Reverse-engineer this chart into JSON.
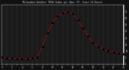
{
  "hours": [
    0,
    1,
    2,
    3,
    4,
    5,
    6,
    7,
    8,
    9,
    10,
    11,
    12,
    13,
    14,
    15,
    16,
    17,
    18,
    19,
    20,
    21,
    22,
    23,
    24
  ],
  "values": [
    5,
    4,
    4,
    3,
    3,
    3,
    4,
    5,
    22,
    42,
    58,
    68,
    73,
    75,
    72,
    62,
    50,
    38,
    28,
    22,
    18,
    15,
    13,
    12,
    11
  ],
  "line_color": "#ff0000",
  "marker_color": "#000000",
  "bg_color": "#111111",
  "plot_bg": "#1a1a1a",
  "grid_color": "#555555",
  "text_color": "#cccccc",
  "ylim": [
    -5,
    85
  ],
  "xlim": [
    0,
    24
  ],
  "yticks": [
    -5,
    5,
    15,
    25,
    35,
    45,
    55,
    65,
    75
  ],
  "xticks": [
    0,
    1,
    2,
    3,
    4,
    5,
    6,
    7,
    8,
    9,
    10,
    11,
    12,
    13,
    14,
    15,
    16,
    17,
    18,
    19,
    20,
    21,
    22,
    23,
    24
  ],
  "title": "Milwaukee Weather THSW Index per Hour (F) (Last 24 Hours)"
}
